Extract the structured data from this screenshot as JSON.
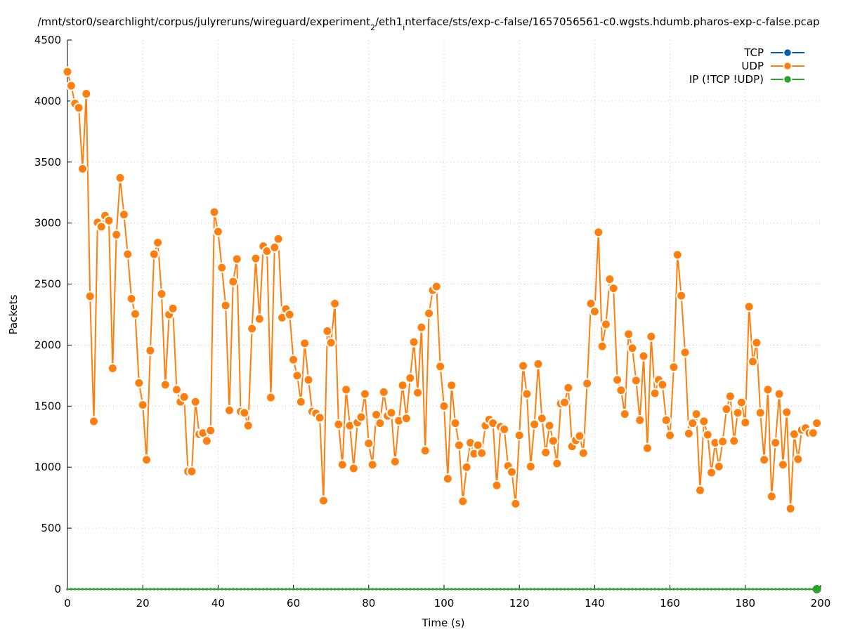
{
  "chart_data": {
    "type": "line",
    "title_parts": [
      {
        "t": "/mnt/stor0/searchlight/corpus/julyreruns/wireguard/experiment",
        "sub": false
      },
      {
        "t": "2",
        "sub": true
      },
      {
        "t": "/eth1",
        "sub": false
      },
      {
        "t": "i",
        "sub": true
      },
      {
        "t": "nterface/sts/exp-c-false/1657056561-c0.wgsts.hdumb.pharos-exp-c-false.pcap",
        "sub": false
      }
    ],
    "xlabel": "Time (s)",
    "ylabel": "Packets",
    "xlim": [
      0,
      200
    ],
    "ylim": [
      0,
      4500
    ],
    "xticks": [
      0,
      20,
      40,
      60,
      80,
      100,
      120,
      140,
      160,
      180,
      200
    ],
    "yticks": [
      0,
      500,
      1000,
      1500,
      2000,
      2500,
      3000,
      3500,
      4000,
      4500
    ],
    "grid": true,
    "legend_position": "top-right",
    "series": [
      {
        "name": "TCP",
        "color": "#0060ad",
        "values": "zeros"
      },
      {
        "name": "UDP",
        "color": "#ff7f0e",
        "values": [
          4240,
          4125,
          3980,
          3945,
          3445,
          4060,
          2400,
          1375,
          3005,
          2970,
          3060,
          3020,
          1810,
          2905,
          3370,
          3070,
          2745,
          2380,
          2255,
          1690,
          1510,
          1060,
          1955,
          2745,
          2840,
          2420,
          1675,
          2250,
          2300,
          1635,
          1535,
          1575,
          965,
          965,
          1535,
          1270,
          1280,
          1215,
          1300,
          3090,
          2930,
          2635,
          2325,
          1465,
          2520,
          2705,
          1455,
          1445,
          1340,
          2135,
          2710,
          2215,
          2810,
          2770,
          1570,
          2800,
          2870,
          2225,
          2295,
          2250,
          1880,
          1750,
          1535,
          2015,
          1715,
          1455,
          1440,
          1405,
          725,
          2115,
          2020,
          2340,
          1350,
          1020,
          1635,
          1340,
          990,
          1365,
          1410,
          1600,
          1195,
          1020,
          1430,
          1360,
          1615,
          1420,
          1445,
          1045,
          1380,
          1670,
          1400,
          1730,
          2025,
          1610,
          2145,
          1135,
          2260,
          2450,
          2480,
          1825,
          1500,
          905,
          1670,
          1360,
          1180,
          720,
          1000,
          1200,
          1110,
          1180,
          1115,
          1340,
          1390,
          1360,
          850,
          1330,
          1310,
          1010,
          960,
          700,
          1260,
          1830,
          1600,
          1005,
          1350,
          1845,
          1400,
          1120,
          1340,
          1215,
          1030,
          1520,
          1530,
          1650,
          1170,
          1220,
          1255,
          1115,
          1685,
          2340,
          2275,
          2925,
          1990,
          2170,
          2540,
          2465,
          1715,
          1630,
          1435,
          2090,
          1975,
          1710,
          1385,
          1910,
          1155,
          2070,
          1605,
          1715,
          1675,
          1385,
          1260,
          1820,
          2740,
          2405,
          1940,
          1275,
          1360,
          1435,
          810,
          1375,
          1265,
          955,
          1200,
          1005,
          1210,
          1475,
          1580,
          1215,
          1445,
          1530,
          1365,
          2315,
          1865,
          2020,
          1445,
          1060,
          1635,
          760,
          1200,
          1600,
          1020,
          1450,
          660,
          1270,
          1065,
          1305,
          1320,
          1280,
          1280,
          1360
        ]
      },
      {
        "name": "IP (!TCP  !UDP)",
        "color": "#2ca02c",
        "values": "zeros"
      }
    ]
  }
}
